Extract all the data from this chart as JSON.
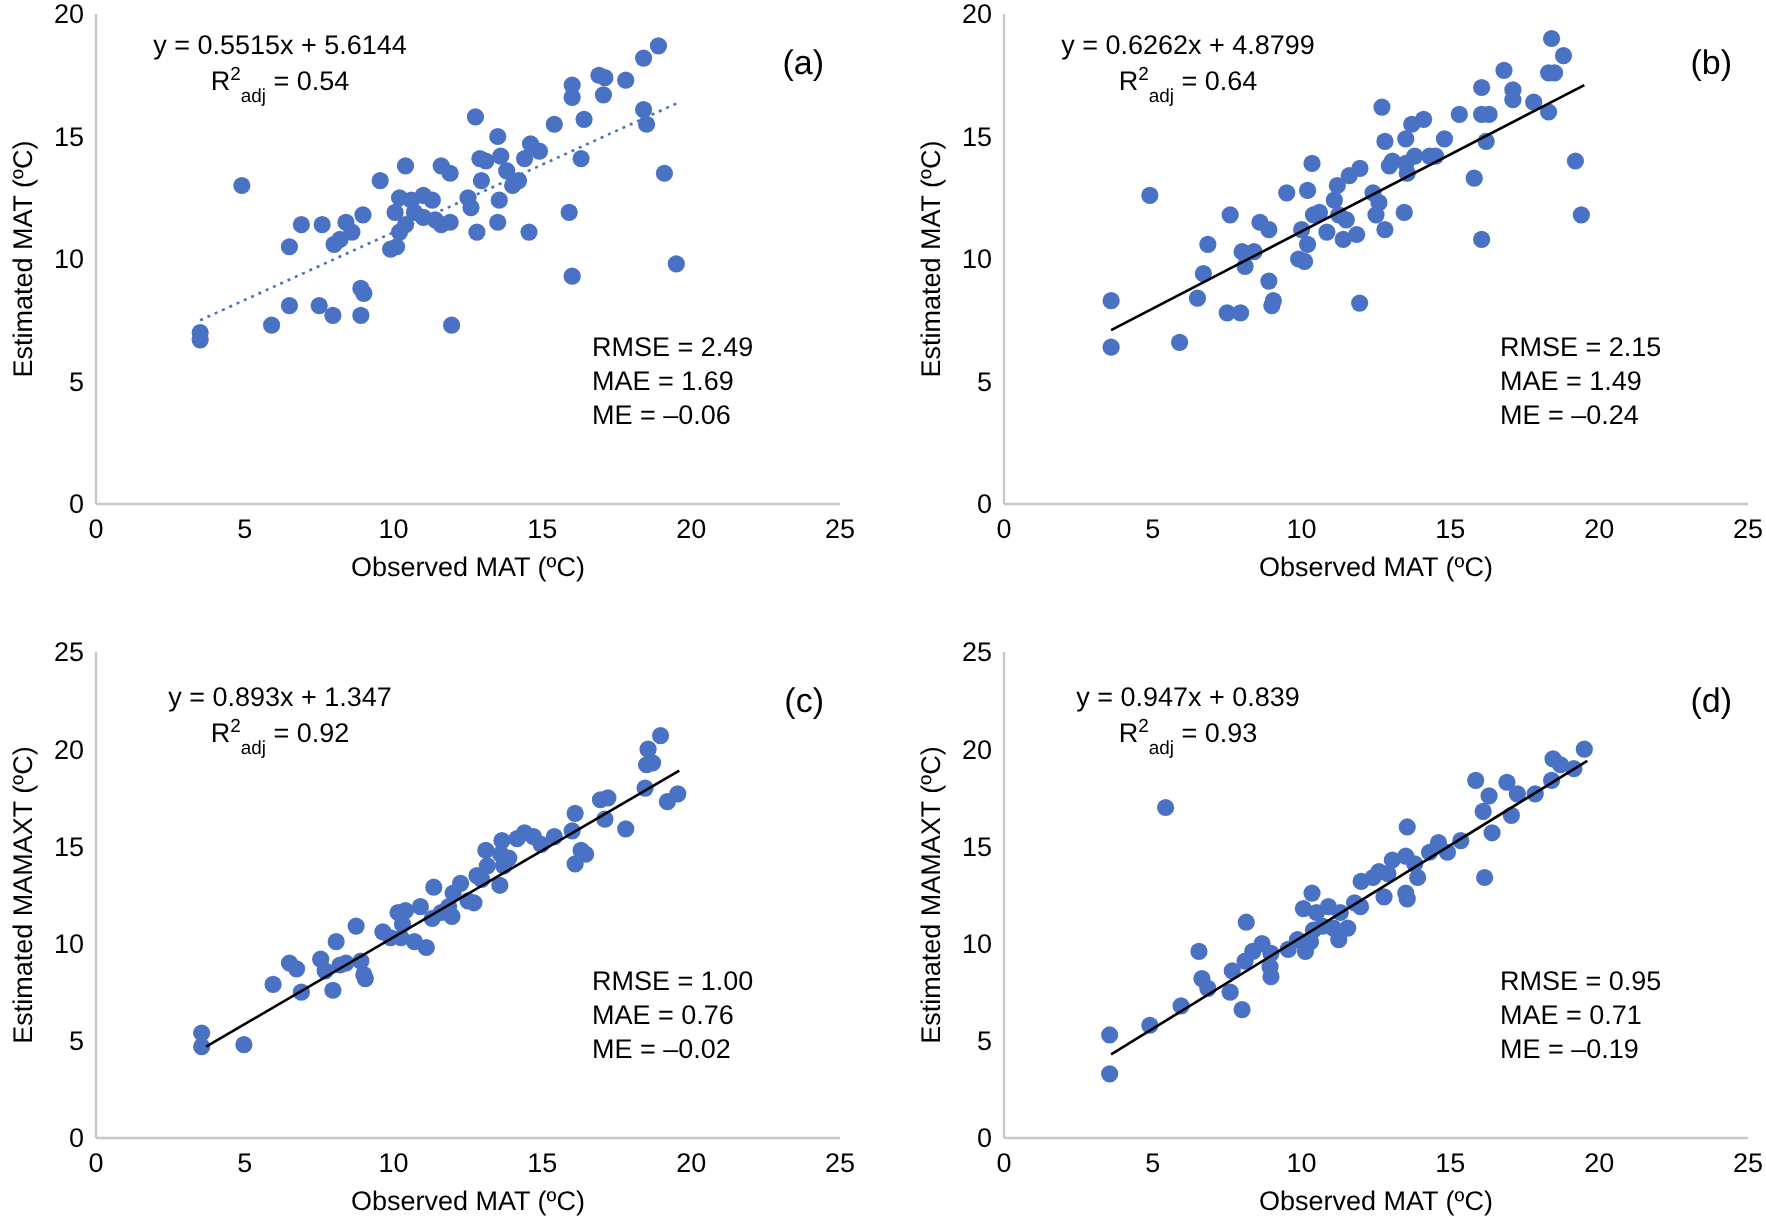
{
  "chart_data": [
    {
      "type": "scatter",
      "xlabel": "Observed MAT (ºC)",
      "ylabel": "Estimated MAT (ºC)",
      "xlim": [
        0,
        25
      ],
      "xticks": [
        0,
        5,
        10,
        15,
        20,
        25
      ],
      "ylim": [
        0,
        20
      ],
      "yticks": [
        0,
        5,
        10,
        15,
        20
      ],
      "marker": "circle",
      "annotations": [
        "(a)",
        "y = 0.5515x + 5.6144",
        "R$^{2}$$_{adj}$ = 0.54",
        "RMSE = 2.49",
        "MAE = 1.69",
        "ME = –0.06"
      ],
      "series": [
        {
          "color": "#4a72c4",
          "x": [
            3.5,
            3.5,
            4.9,
            5.9,
            6.5,
            6.5,
            6.9,
            7.5,
            7.6,
            7.96,
            8.0,
            8.2,
            8.4,
            8.6,
            8.9,
            9.0,
            8.9,
            8.97,
            9.55,
            9.9,
            10.05,
            10.1,
            10.2,
            10.2,
            10.4,
            10.4,
            10.6,
            10.7,
            11.0,
            11.0,
            11.3,
            11.4,
            11.6,
            11.6,
            11.9,
            11.9,
            11.95,
            12.5,
            12.6,
            12.75,
            12.8,
            12.9,
            12.95,
            13.1,
            13.5,
            13.5,
            13.55,
            13.6,
            13.8,
            14.0,
            14.2,
            14.4,
            14.55,
            14.6,
            14.9,
            15.4,
            15.9,
            16.0,
            16.0,
            16.0,
            16.3,
            16.4,
            16.9,
            17.05,
            17.1,
            17.8,
            18.4,
            18.4,
            18.5,
            18.9,
            19.1,
            19.5
          ],
          "values": [
            7.0,
            6.7,
            13.0,
            7.3,
            10.5,
            8.1,
            11.4,
            8.1,
            11.4,
            7.7,
            10.6,
            10.8,
            11.5,
            11.1,
            8.8,
            8.6,
            7.7,
            11.8,
            13.2,
            10.4,
            11.9,
            10.5,
            11.1,
            12.5,
            13.8,
            11.4,
            12.4,
            11.9,
            12.6,
            11.7,
            12.4,
            11.6,
            11.4,
            13.8,
            11.5,
            13.5,
            7.3,
            12.5,
            12.1,
            15.8,
            11.1,
            14.1,
            13.2,
            14.0,
            11.5,
            15.0,
            12.4,
            14.2,
            13.6,
            13.0,
            13.2,
            14.1,
            11.1,
            14.7,
            14.4,
            15.5,
            11.9,
            16.6,
            17.1,
            9.3,
            14.1,
            15.7,
            17.5,
            16.7,
            17.4,
            17.3,
            16.1,
            18.2,
            15.5,
            18.7,
            13.5,
            9.8
          ]
        },
        {
          "type": "line",
          "color": "#4a72c4",
          "line_style": "dotted",
          "marker": "none",
          "x": [
            3.5,
            19.6
          ],
          "values": [
            7.5,
            16.4
          ]
        }
      ]
    },
    {
      "type": "scatter",
      "xlabel": "Observed MAT (ºC)",
      "ylabel": "Estimated MAT (ºC)",
      "xlim": [
        0,
        25
      ],
      "xticks": [
        0,
        5,
        10,
        15,
        20,
        25
      ],
      "ylim": [
        0,
        20
      ],
      "yticks": [
        0,
        5,
        10,
        15,
        20
      ],
      "marker": "circle",
      "annotations": [
        "(b)",
        "y = 0.6262x + 4.8799",
        "R$^{2}$$_{adj}$ = 0.64",
        "RMSE = 2.15",
        "MAE = 1.49",
        "ME = –0.24"
      ],
      "series": [
        {
          "color": "#4a72c4",
          "x": [
            3.6,
            3.6,
            4.9,
            5.9,
            6.5,
            6.7,
            6.85,
            7.5,
            7.6,
            7.95,
            8.0,
            8.1,
            8.4,
            8.6,
            8.9,
            8.9,
            9.0,
            9.05,
            9.5,
            9.9,
            10.0,
            10.1,
            10.2,
            10.2,
            10.35,
            10.4,
            10.6,
            10.85,
            11.1,
            11.2,
            11.25,
            11.4,
            11.5,
            11.6,
            11.85,
            11.95,
            11.96,
            12.4,
            12.5,
            12.6,
            12.7,
            12.8,
            12.8,
            12.95,
            13.05,
            13.45,
            13.5,
            13.5,
            13.55,
            13.7,
            13.8,
            14.1,
            14.3,
            14.5,
            14.8,
            15.3,
            15.8,
            16.05,
            16.05,
            16.05,
            16.2,
            16.3,
            16.8,
            17.1,
            17.1,
            17.8,
            18.3,
            18.3,
            18.4,
            18.5,
            18.8,
            19.2,
            19.4
          ],
          "values": [
            8.3,
            6.4,
            12.6,
            6.6,
            8.4,
            9.4,
            10.6,
            7.8,
            11.8,
            7.8,
            10.3,
            9.7,
            10.3,
            11.5,
            11.2,
            9.1,
            8.1,
            8.3,
            12.7,
            10.0,
            11.2,
            9.9,
            12.8,
            10.6,
            13.9,
            11.8,
            11.9,
            11.1,
            12.4,
            13.0,
            11.8,
            10.8,
            11.6,
            13.4,
            11.0,
            8.2,
            13.7,
            12.7,
            11.8,
            12.3,
            16.2,
            11.2,
            14.8,
            13.8,
            14.0,
            11.9,
            14.9,
            13.9,
            13.5,
            15.5,
            14.2,
            15.7,
            14.2,
            14.2,
            14.9,
            15.9,
            13.3,
            17.0,
            10.8,
            15.9,
            14.8,
            15.9,
            17.7,
            16.5,
            16.9,
            16.4,
            16.0,
            17.6,
            19.0,
            17.6,
            18.3,
            14.0,
            11.8
          ]
        },
        {
          "type": "line",
          "color": "#000000",
          "line_style": "solid",
          "marker": "none",
          "x": [
            3.6,
            19.5
          ],
          "values": [
            7.1,
            17.1
          ]
        }
      ]
    },
    {
      "type": "scatter",
      "xlabel": "Observed MAT (ºC)",
      "ylabel": "Estimated MAMAXT (ºC)",
      "xlim": [
        0,
        25
      ],
      "xticks": [
        0,
        5,
        10,
        15,
        20,
        25
      ],
      "ylim": [
        0,
        25
      ],
      "yticks": [
        0,
        5,
        10,
        15,
        20,
        25
      ],
      "marker": "circle",
      "annotations": [
        "(c)",
        "y = 0.893x + 1.347",
        "R$^{2}$$_{adj}$ = 0.92",
        "RMSE = 1.00",
        "MAE = 0.76",
        "ME = –0.02"
      ],
      "series": [
        {
          "color": "#4a72c4",
          "x": [
            3.55,
            3.55,
            4.97,
            5.95,
            6.5,
            6.74,
            6.9,
            7.55,
            7.7,
            7.96,
            8.07,
            8.2,
            8.4,
            8.74,
            8.9,
            9.0,
            9.05,
            9.64,
            9.9,
            10.15,
            10.25,
            10.3,
            10.4,
            10.7,
            10.9,
            11.1,
            11.3,
            11.35,
            11.6,
            11.85,
            11.96,
            12.0,
            12.25,
            12.5,
            12.7,
            12.8,
            12.96,
            13.1,
            13.15,
            13.57,
            13.6,
            13.64,
            13.7,
            13.87,
            14.15,
            14.4,
            14.7,
            14.96,
            15.4,
            16.0,
            16.1,
            16.1,
            16.3,
            16.45,
            16.95,
            17.1,
            17.2,
            17.8,
            18.45,
            18.5,
            18.55,
            18.7,
            18.97,
            19.2,
            19.55
          ],
          "values": [
            5.4,
            4.7,
            4.8,
            7.9,
            9.0,
            8.7,
            7.5,
            9.2,
            8.6,
            7.6,
            10.1,
            8.9,
            9.0,
            10.9,
            9.1,
            8.4,
            8.2,
            10.6,
            10.3,
            11.6,
            10.3,
            11.0,
            11.7,
            10.1,
            11.9,
            9.8,
            11.3,
            12.9,
            11.6,
            11.9,
            11.4,
            12.6,
            13.1,
            12.2,
            12.1,
            13.5,
            13.3,
            14.8,
            14.0,
            13.0,
            14.6,
            15.3,
            14.0,
            14.4,
            15.4,
            15.7,
            15.5,
            15.1,
            15.5,
            15.8,
            16.7,
            14.1,
            14.8,
            14.6,
            17.4,
            16.4,
            17.5,
            15.9,
            18.0,
            19.2,
            20.0,
            19.3,
            20.7,
            17.3,
            17.7
          ]
        },
        {
          "type": "line",
          "color": "#000000",
          "line_style": "solid",
          "marker": "none",
          "x": [
            3.7,
            19.6
          ],
          "values": [
            4.7,
            18.9
          ]
        }
      ]
    },
    {
      "type": "scatter",
      "xlabel": "Observed MAT (ºC)",
      "ylabel": "Estimated MAMAXT (ºC)",
      "xlim": [
        0,
        25
      ],
      "xticks": [
        0,
        5,
        10,
        15,
        20,
        25
      ],
      "ylim": [
        0,
        25
      ],
      "yticks": [
        0,
        5,
        10,
        15,
        20,
        25
      ],
      "marker": "circle",
      "annotations": [
        "(d)",
        "y = 0.947x + 0.839",
        "R$^{2}$$_{adj}$ = 0.93",
        "RMSE = 0.95",
        "MAE = 0.71",
        "ME = –0.19"
      ],
      "series": [
        {
          "color": "#4a72c4",
          "x": [
            3.55,
            3.55,
            4.9,
            5.95,
            5.43,
            6.55,
            6.65,
            6.85,
            7.6,
            7.67,
            8.0,
            8.14,
            8.1,
            8.36,
            8.67,
            8.94,
            8.97,
            8.97,
            9.55,
            9.86,
            10.06,
            10.13,
            10.35,
            10.3,
            10.4,
            10.5,
            10.7,
            10.9,
            11.07,
            11.25,
            11.3,
            11.55,
            11.78,
            11.98,
            12.0,
            12.4,
            12.6,
            12.77,
            12.9,
            13.05,
            13.5,
            13.55,
            13.55,
            13.5,
            13.8,
            13.9,
            14.3,
            14.6,
            14.9,
            15.35,
            15.85,
            16.1,
            16.15,
            16.3,
            16.4,
            16.9,
            17.05,
            17.25,
            17.85,
            18.4,
            18.45,
            18.7,
            19.15,
            19.5
          ],
          "values": [
            5.3,
            3.3,
            5.8,
            6.8,
            17.0,
            9.6,
            8.2,
            7.7,
            7.5,
            8.6,
            6.6,
            11.1,
            9.1,
            9.6,
            10.0,
            8.8,
            8.3,
            9.5,
            9.7,
            10.2,
            11.8,
            9.6,
            12.6,
            10.1,
            10.7,
            11.6,
            10.9,
            11.9,
            10.8,
            10.2,
            11.6,
            10.8,
            12.1,
            11.9,
            13.2,
            13.4,
            13.7,
            12.4,
            13.6,
            14.3,
            12.6,
            12.3,
            16.0,
            14.5,
            14.1,
            13.4,
            14.7,
            15.2,
            14.7,
            15.3,
            18.4,
            16.8,
            13.4,
            17.6,
            15.7,
            18.3,
            16.6,
            17.7,
            17.7,
            18.4,
            19.5,
            19.2,
            19.0,
            20.0
          ]
        },
        {
          "type": "line",
          "color": "#000000",
          "line_style": "solid",
          "marker": "none",
          "x": [
            3.6,
            19.6
          ],
          "values": [
            4.3,
            19.4
          ]
        }
      ]
    }
  ]
}
